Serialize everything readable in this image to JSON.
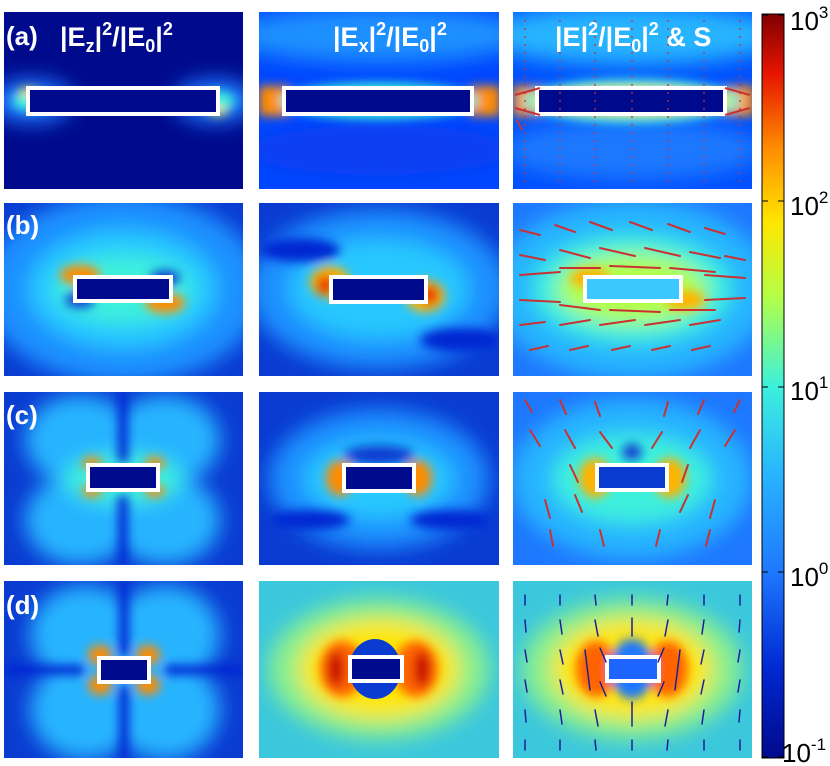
{
  "colors": {
    "dark_blue": "#000a8c",
    "blue": "#0046ff",
    "light_blue": "#1e9bff",
    "cyan": "#3ce6ff",
    "green_yellow": "#c8ff3c",
    "yellow": "#ffd200",
    "orange": "#ff6e00",
    "red": "#d20000",
    "dark_red": "#800000",
    "rect_outline": "#ffffff",
    "arrow_red": "#c83232",
    "arrow_blue": "#1e1e9b"
  },
  "rows": [
    {
      "label": "(a)"
    },
    {
      "label": "(b)"
    },
    {
      "label": "(c)"
    },
    {
      "label": "(d)"
    }
  ],
  "columns": [
    {
      "title": "|E_z|^2/|E_0|^2",
      "base": "|E",
      "sub": "z",
      "mid": "|",
      "sup": "2",
      "div": "/|E",
      "sub2": "0",
      "mid2": "|",
      "sup2": "2",
      "tail": ""
    },
    {
      "title": "|E_x|^2/|E_0|^2",
      "base": "|E",
      "sub": "x",
      "mid": "|",
      "sup": "2",
      "div": "/|E",
      "sub2": "0",
      "mid2": "|",
      "sup2": "2",
      "tail": ""
    },
    {
      "title": "|E|^2/|E_0|^2 & S",
      "base": "|E|",
      "sub": "",
      "mid": "",
      "sup": "2",
      "div": "/|E",
      "sub2": "0",
      "mid2": "|",
      "sup2": "2",
      "tail": " & S"
    }
  ],
  "colorbar": {
    "scale": "log",
    "range": [
      0.1,
      1000
    ],
    "ticks": [
      {
        "base": "10",
        "exp": "3"
      },
      {
        "base": "10",
        "exp": "2"
      },
      {
        "base": "10",
        "exp": "1"
      },
      {
        "base": "10",
        "exp": "0"
      },
      {
        "base": "10",
        "exp": "-1"
      }
    ]
  }
}
